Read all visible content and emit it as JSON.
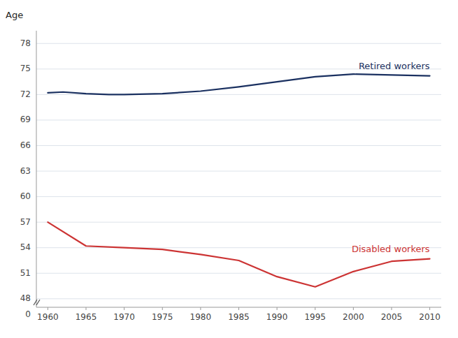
{
  "chart_data": {
    "type": "line",
    "ylabel": "Age",
    "series": [
      {
        "name": "Retired workers",
        "color": "#1a3060",
        "x": [
          1960,
          1962,
          1965,
          1968,
          1970,
          1975,
          1980,
          1985,
          1990,
          1995,
          2000,
          2010
        ],
        "values": [
          72.2,
          72.3,
          72.1,
          72.0,
          72.0,
          72.1,
          72.4,
          72.9,
          73.5,
          74.1,
          74.4,
          74.2
        ]
      },
      {
        "name": "Disabled workers",
        "color": "#cc3333",
        "x": [
          1960,
          1965,
          1970,
          1975,
          1980,
          1985,
          1990,
          1995,
          2000,
          2005,
          2010
        ],
        "values": [
          57.0,
          54.2,
          54.0,
          53.8,
          53.2,
          52.5,
          50.6,
          49.4,
          51.2,
          52.4,
          52.7
        ]
      }
    ],
    "xlim": [
      1958.5,
      2011.5
    ],
    "ylim": [
      47.0,
      79.5
    ],
    "xticks": [
      1960,
      1965,
      1970,
      1975,
      1980,
      1985,
      1990,
      1995,
      2000,
      2005,
      2010
    ],
    "yticks": [
      48,
      51,
      54,
      57,
      60,
      63,
      66,
      69,
      72,
      75,
      78
    ],
    "annotations": [
      {
        "text": "0",
        "x": 1958.5,
        "y": 47.0
      }
    ],
    "grid": "y"
  }
}
